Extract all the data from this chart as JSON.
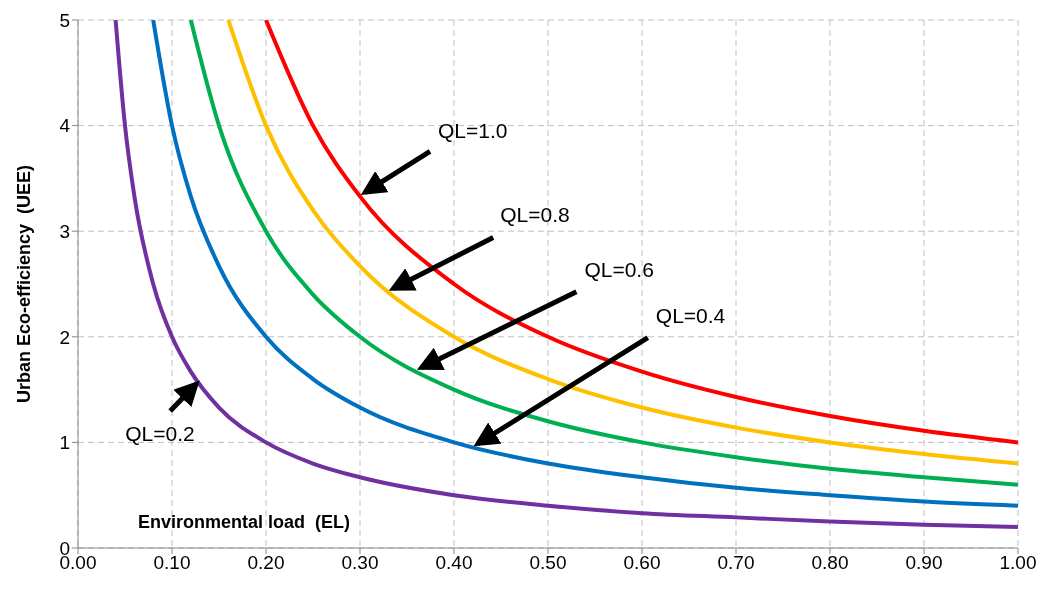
{
  "chart_data": {
    "type": "line",
    "xlabel": "Environmental load  (EL)",
    "ylabel": "Urban Eco-efficiency  (UEE)",
    "xlim": [
      0,
      1
    ],
    "xticks": [
      {
        "value": 0,
        "label": "0.00"
      },
      {
        "value": 0.1,
        "label": "0.10"
      },
      {
        "value": 0.2,
        "label": "0.20"
      },
      {
        "value": 0.3,
        "label": "0.30"
      },
      {
        "value": 0.4,
        "label": "0.40"
      },
      {
        "value": 0.5,
        "label": "0.50"
      },
      {
        "value": 0.6,
        "label": "0.60"
      },
      {
        "value": 0.7,
        "label": "0.70"
      },
      {
        "value": 0.8,
        "label": "0.80"
      },
      {
        "value": 0.9,
        "label": "0.90"
      },
      {
        "value": 1,
        "label": "1.00"
      }
    ],
    "ylim": [
      0,
      5
    ],
    "yticks": [
      0,
      1,
      2,
      3,
      4,
      5
    ],
    "grid": true,
    "marker": "none",
    "line_style": "solid",
    "series": [
      {
        "color": "#7030a0",
        "x": [
          0.04,
          0.05,
          0.06,
          0.08,
          0.1,
          0.12,
          0.15,
          0.2,
          0.25,
          0.3,
          0.4,
          0.5,
          0.6,
          0.7,
          0.8,
          0.9,
          1.0
        ],
        "values": [
          5,
          4,
          3.33,
          2.5,
          2,
          1.67,
          1.33,
          1,
          0.8,
          0.67,
          0.5,
          0.4,
          0.33,
          0.29,
          0.25,
          0.22,
          0.2
        ]
      },
      {
        "color": "#0070c0",
        "x": [
          0.08,
          0.1,
          0.12,
          0.15,
          0.2,
          0.25,
          0.3,
          0.4,
          0.5,
          0.6,
          0.7,
          0.8,
          0.9,
          1.0
        ],
        "values": [
          5,
          4,
          3.33,
          2.67,
          2,
          1.6,
          1.33,
          1,
          0.8,
          0.67,
          0.57,
          0.5,
          0.44,
          0.4
        ]
      },
      {
        "color": "#00b050",
        "x": [
          0.12,
          0.15,
          0.2,
          0.25,
          0.3,
          0.4,
          0.5,
          0.6,
          0.7,
          0.8,
          0.9,
          1.0
        ],
        "values": [
          5,
          4,
          3,
          2.4,
          2,
          1.5,
          1.2,
          1,
          0.86,
          0.75,
          0.67,
          0.6
        ]
      },
      {
        "color": "#ffc000",
        "x": [
          0.16,
          0.2,
          0.25,
          0.3,
          0.4,
          0.5,
          0.6,
          0.7,
          0.8,
          0.9,
          1.0
        ],
        "values": [
          5,
          4,
          3.2,
          2.67,
          2,
          1.6,
          1.33,
          1.14,
          1,
          0.89,
          0.8
        ]
      },
      {
        "color": "#ff0000",
        "x": [
          0.2,
          0.25,
          0.3,
          0.4,
          0.5,
          0.6,
          0.7,
          0.8,
          0.9,
          1.0
        ],
        "values": [
          5,
          4,
          3.33,
          2.5,
          2,
          1.67,
          1.43,
          1.25,
          1.11,
          1
        ]
      }
    ],
    "annotations": [
      {
        "text": "QL=1.0",
        "x": 0.3,
        "y": 3.33
      },
      {
        "text": "QL=0.8",
        "x": 0.33,
        "y": 2.42
      },
      {
        "text": "QL=0.6",
        "x": 0.36,
        "y": 1.67
      },
      {
        "text": "QL=0.4",
        "x": 0.42,
        "y": 0.95
      },
      {
        "text": "QL=0.2",
        "x": 0.13,
        "y": 1.6
      }
    ]
  }
}
